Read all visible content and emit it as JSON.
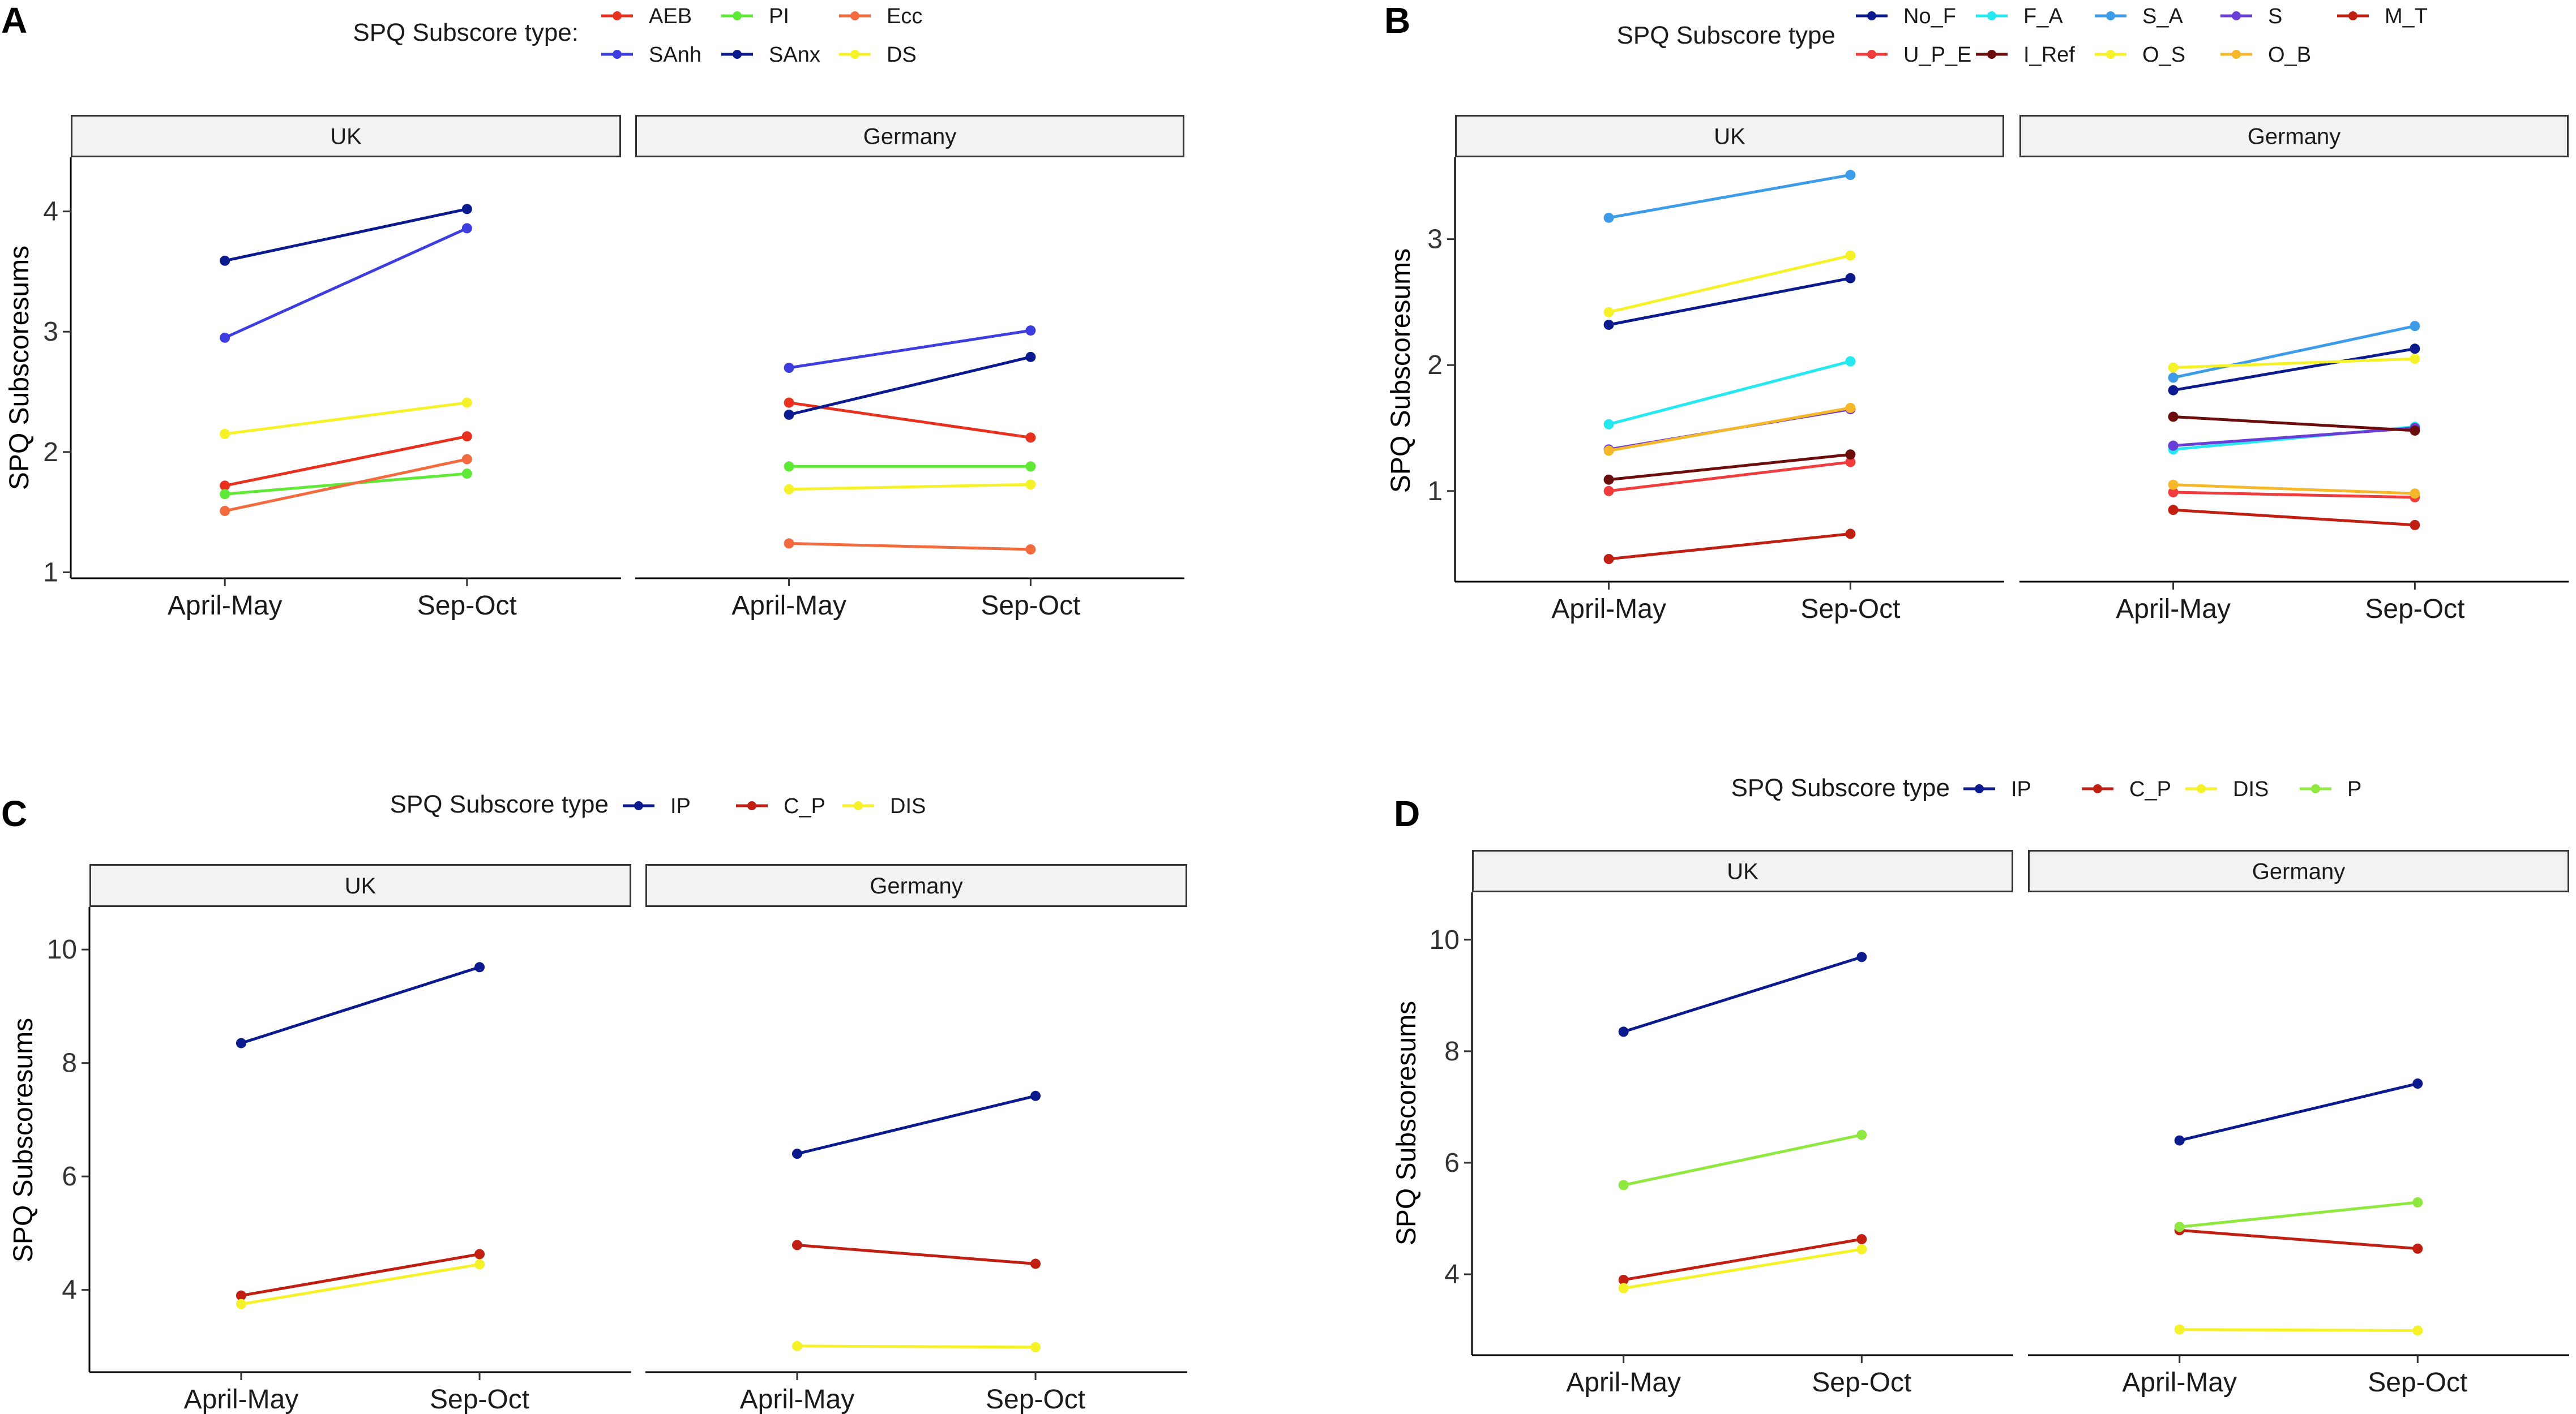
{
  "figure": {
    "x_categories": [
      "April-May",
      "Sep-Oct"
    ],
    "facets": [
      "UK",
      "Germany"
    ],
    "ylabel": "SPQ Subscoresums"
  },
  "chart_data": [
    {
      "panel": "A",
      "type": "line",
      "legend_title": "SPQ Subscore type:",
      "ylim": [
        0.95,
        4.45
      ],
      "yticks": [
        1,
        2,
        3,
        4
      ],
      "series": [
        {
          "name": "AEB",
          "color": "#e8301f",
          "uk": [
            1.72,
            2.13
          ],
          "germany": [
            2.41,
            2.12
          ]
        },
        {
          "name": "PI",
          "color": "#5fe835",
          "uk": [
            1.65,
            1.82
          ],
          "germany": [
            1.88,
            1.88
          ]
        },
        {
          "name": "Ecc",
          "color": "#f26a3d",
          "uk": [
            1.51,
            1.94
          ],
          "germany": [
            1.24,
            1.19
          ]
        },
        {
          "name": "SAnh",
          "color": "#3e3ee0",
          "uk": [
            2.95,
            3.86
          ],
          "germany": [
            2.7,
            3.01
          ]
        },
        {
          "name": "SAnx",
          "color": "#0b1a8c",
          "uk": [
            3.59,
            4.02
          ],
          "germany": [
            2.31,
            2.79
          ]
        },
        {
          "name": "DS",
          "color": "#f5f22a",
          "uk": [
            2.15,
            2.41
          ],
          "germany": [
            1.69,
            1.73
          ]
        }
      ]
    },
    {
      "panel": "B",
      "type": "line",
      "legend_title": "SPQ Subscore type",
      "ylim": [
        0.28,
        3.65
      ],
      "yticks": [
        1,
        2,
        3
      ],
      "series": [
        {
          "name": "No_F",
          "color": "#0b1a8c",
          "uk": [
            2.32,
            2.69
          ],
          "germany": [
            1.8,
            2.13
          ]
        },
        {
          "name": "F_A",
          "color": "#26e8f0",
          "uk": [
            1.53,
            2.03
          ],
          "germany": [
            1.33,
            1.51
          ]
        },
        {
          "name": "S_A",
          "color": "#3d9be8",
          "uk": [
            3.17,
            3.51
          ],
          "germany": [
            1.9,
            2.31
          ]
        },
        {
          "name": "S",
          "color": "#6a3dd6",
          "uk": [
            1.33,
            1.65
          ],
          "germany": [
            1.36,
            1.5
          ]
        },
        {
          "name": "M_T",
          "color": "#c01f12",
          "uk": [
            0.46,
            0.66
          ],
          "germany": [
            0.85,
            0.73
          ]
        },
        {
          "name": "U_P_E",
          "color": "#f03c3c",
          "uk": [
            1.0,
            1.23
          ],
          "germany": [
            0.99,
            0.95
          ]
        },
        {
          "name": "I_Ref",
          "color": "#6b0d0d",
          "uk": [
            1.09,
            1.29
          ],
          "germany": [
            1.59,
            1.48
          ]
        },
        {
          "name": "O_S",
          "color": "#f5f22a",
          "uk": [
            2.42,
            2.87
          ],
          "germany": [
            1.98,
            2.05
          ]
        },
        {
          "name": "O_B",
          "color": "#f5b82a",
          "uk": [
            1.32,
            1.66
          ],
          "germany": [
            1.05,
            0.98
          ]
        }
      ]
    },
    {
      "panel": "C",
      "type": "line",
      "legend_title": "SPQ Subscore type",
      "ylim": [
        2.55,
        10.75
      ],
      "yticks": [
        4,
        6,
        8,
        10
      ],
      "series": [
        {
          "name": "IP",
          "color": "#0b1a8c",
          "uk": [
            8.35,
            9.69
          ],
          "germany": [
            6.4,
            7.42
          ]
        },
        {
          "name": "C_P",
          "color": "#c01f12",
          "uk": [
            3.9,
            4.63
          ],
          "germany": [
            4.79,
            4.46
          ]
        },
        {
          "name": "DIS",
          "color": "#f5f22a",
          "uk": [
            3.75,
            4.45
          ],
          "germany": [
            3.01,
            2.99
          ]
        }
      ]
    },
    {
      "panel": "D",
      "type": "line",
      "legend_title": "SPQ Subscore type",
      "ylim": [
        2.55,
        10.85
      ],
      "yticks": [
        4,
        6,
        8,
        10
      ],
      "series": [
        {
          "name": "IP",
          "color": "#0b1a8c",
          "uk": [
            8.35,
            9.69
          ],
          "germany": [
            6.4,
            7.42
          ]
        },
        {
          "name": "C_P",
          "color": "#c01f12",
          "uk": [
            3.9,
            4.63
          ],
          "germany": [
            4.79,
            4.46
          ]
        },
        {
          "name": "DIS",
          "color": "#f5f22a",
          "uk": [
            3.75,
            4.45
          ],
          "germany": [
            3.01,
            2.99
          ]
        },
        {
          "name": "P",
          "color": "#8ee83f",
          "uk": [
            5.6,
            6.5
          ],
          "germany": [
            4.85,
            5.29
          ]
        }
      ]
    }
  ]
}
